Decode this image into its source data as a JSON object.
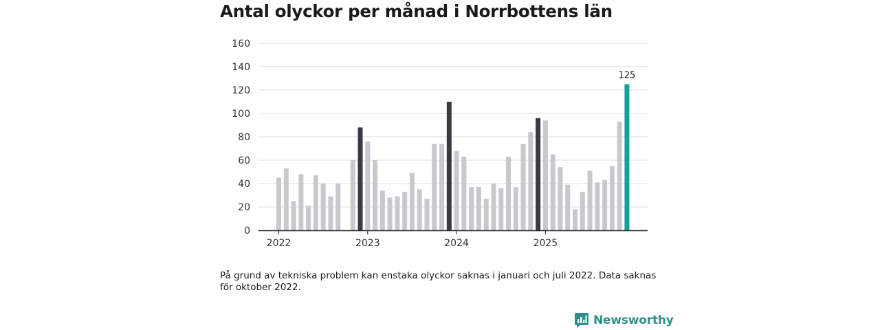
{
  "colors": {
    "regular": "#c8c8cf",
    "january": "#3a3a42",
    "latest": "#13a39b",
    "grid": "#dcdcdc",
    "axis": "#222222",
    "brand": "#2e8f8a"
  },
  "chart_data": {
    "type": "bar",
    "title": "Antal olyckor per månad i Norrbottens län",
    "xlabel": "",
    "ylabel": "",
    "ylim": [
      0,
      160
    ],
    "yticks": [
      "0",
      "20",
      "40",
      "60",
      "80",
      "100",
      "120",
      "140",
      "160"
    ],
    "year_labels": [
      {
        "label": "2022",
        "index": 0
      },
      {
        "label": "2023",
        "index": 12
      },
      {
        "label": "2024",
        "index": 24
      },
      {
        "label": "2025",
        "index": 36
      }
    ],
    "categories": [
      "2022-01",
      "2022-02",
      "2022-03",
      "2022-04",
      "2022-05",
      "2022-06",
      "2022-07",
      "2022-08",
      "2022-09",
      "2022-10",
      "2022-11",
      "2022-12",
      "2023-01",
      "2023-02",
      "2023-03",
      "2023-04",
      "2023-05",
      "2023-06",
      "2023-07",
      "2023-08",
      "2023-09",
      "2023-10",
      "2023-11",
      "2023-12",
      "2024-01",
      "2024-02",
      "2024-03",
      "2024-04",
      "2024-05",
      "2024-06",
      "2024-07",
      "2024-08",
      "2024-09",
      "2024-10",
      "2024-11",
      "2024-12",
      "2025-01",
      "2025-02",
      "2025-03",
      "2025-04",
      "2025-05",
      "2025-06",
      "2025-07",
      "2025-08",
      "2025-09",
      "2025-10",
      "2025-11",
      "2025-12"
    ],
    "values": [
      45,
      53,
      25,
      48,
      21,
      47,
      40,
      29,
      40,
      null,
      60,
      88,
      76,
      60,
      34,
      28,
      29,
      33,
      49,
      35,
      27,
      74,
      74,
      110,
      68,
      63,
      37,
      37,
      27,
      40,
      36,
      63,
      37,
      74,
      84,
      96,
      94,
      65,
      54,
      39,
      18,
      33,
      51,
      41,
      43,
      55,
      93,
      125
    ],
    "highlight_indices": [
      11,
      23,
      35
    ],
    "latest_index": 47,
    "latest_label": "125"
  },
  "footnote": "På grund av tekniska problem kan enstaka olyckor saknas i januari och juli 2022. Data saknas för oktober 2022.",
  "brand": {
    "name": "Newsworthy",
    "icon": "newsworthy-logo-icon"
  }
}
